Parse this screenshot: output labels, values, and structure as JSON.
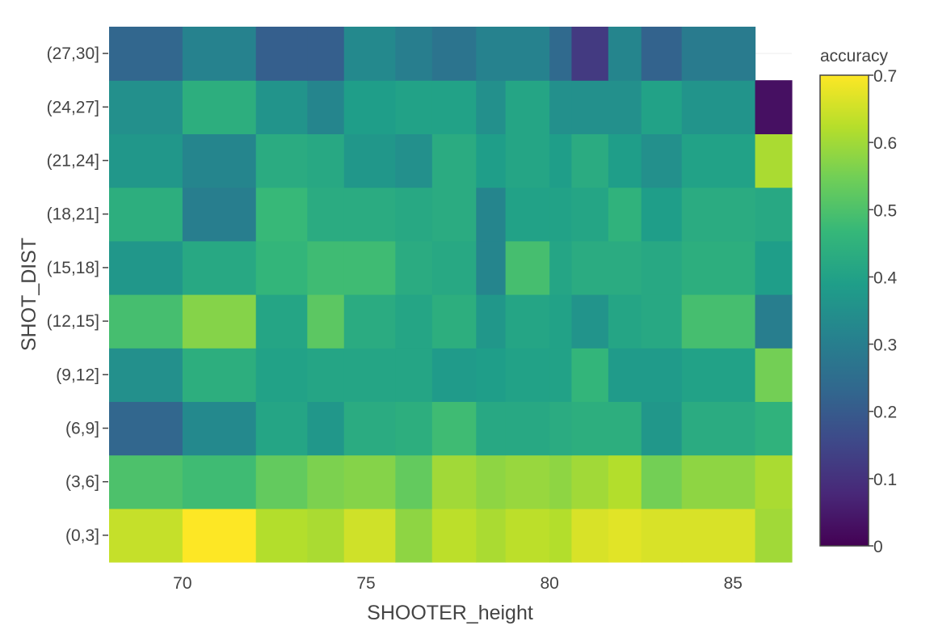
{
  "chart_data": {
    "type": "heatmap",
    "xlabel": "SHOOTER_height",
    "ylabel": "SHOT_DIST",
    "x_ticks": [
      70,
      75,
      80,
      85
    ],
    "xlim": [
      68,
      86.6
    ],
    "x_edges": [
      68,
      70,
      72,
      73.4,
      74.4,
      75.8,
      76.8,
      78.0,
      78.8,
      80.0,
      80.6,
      81.6,
      82.5,
      83.6,
      85.6,
      86.6
    ],
    "y_categories": [
      "(0,3]",
      "(3,6]",
      "(6,9]",
      "(9,12]",
      "(12,15]",
      "(15,18]",
      "(18,21]",
      "(21,24]",
      "(24,27]",
      "(27,30]"
    ],
    "z": [
      [
        0.64,
        0.7,
        0.62,
        0.61,
        0.65,
        0.58,
        0.63,
        0.61,
        0.63,
        0.62,
        0.66,
        0.67,
        0.66,
        0.66,
        0.6
      ],
      [
        0.5,
        0.48,
        0.53,
        0.56,
        0.57,
        0.53,
        0.6,
        0.58,
        0.59,
        0.58,
        0.6,
        0.62,
        0.55,
        0.58,
        0.61
      ],
      [
        0.23,
        0.33,
        0.41,
        0.37,
        0.43,
        0.44,
        0.48,
        0.42,
        0.42,
        0.43,
        0.44,
        0.44,
        0.37,
        0.43,
        0.45
      ],
      [
        0.35,
        0.44,
        0.4,
        0.41,
        0.41,
        0.41,
        0.38,
        0.39,
        0.4,
        0.4,
        0.46,
        0.38,
        0.38,
        0.4,
        0.55
      ],
      [
        0.49,
        0.57,
        0.41,
        0.52,
        0.43,
        0.41,
        0.44,
        0.37,
        0.41,
        0.4,
        0.36,
        0.41,
        0.42,
        0.49,
        0.3
      ],
      [
        0.37,
        0.42,
        0.46,
        0.48,
        0.48,
        0.43,
        0.42,
        0.32,
        0.49,
        0.41,
        0.43,
        0.43,
        0.42,
        0.44,
        0.39
      ],
      [
        0.44,
        0.3,
        0.47,
        0.43,
        0.43,
        0.42,
        0.43,
        0.32,
        0.4,
        0.4,
        0.41,
        0.45,
        0.39,
        0.43,
        0.42
      ],
      [
        0.37,
        0.32,
        0.43,
        0.42,
        0.37,
        0.35,
        0.43,
        0.39,
        0.41,
        0.39,
        0.43,
        0.39,
        0.35,
        0.4,
        0.61
      ],
      [
        0.35,
        0.44,
        0.36,
        0.32,
        0.39,
        0.4,
        0.4,
        0.35,
        0.41,
        0.35,
        0.35,
        0.35,
        0.4,
        0.36,
        0.03
      ],
      [
        0.23,
        0.31,
        0.21,
        0.21,
        0.33,
        0.3,
        0.27,
        0.31,
        0.31,
        0.24,
        0.12,
        0.32,
        0.22,
        0.29,
        null
      ]
    ],
    "colorbar": {
      "title": "accuracy",
      "range": [
        0,
        0.7
      ],
      "ticks": [
        "0",
        "0.1",
        "0.2",
        "0.3",
        "0.4",
        "0.5",
        "0.6",
        "0.7"
      ],
      "tick_values": [
        0,
        0.1,
        0.2,
        0.3,
        0.4,
        0.5,
        0.6,
        0.7
      ]
    },
    "colorscale": "viridis",
    "grid": true
  },
  "colors": {
    "viridis": [
      "#440154",
      "#482878",
      "#3e4989",
      "#31688e",
      "#26828e",
      "#1f9e89",
      "#35b779",
      "#6ece58",
      "#b5de2b",
      "#fde725"
    ],
    "text": "#444444",
    "grid": "#eeeeee"
  }
}
